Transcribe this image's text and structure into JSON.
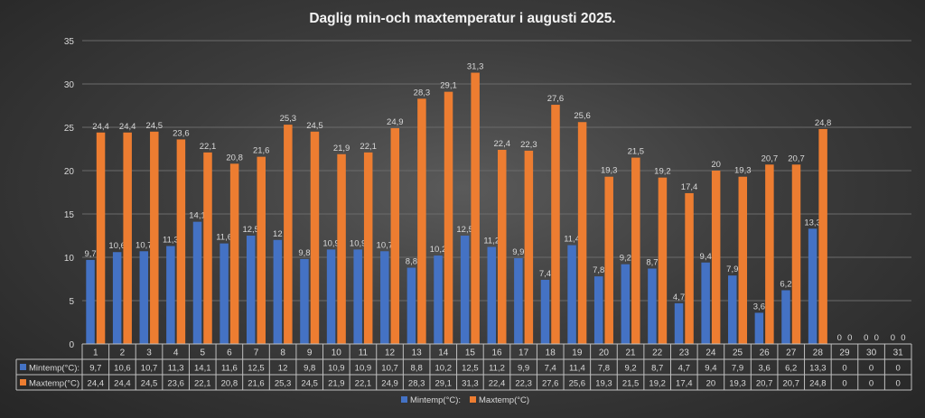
{
  "chart_data": {
    "type": "bar",
    "title": "Daglig min-och maxtemperatur i augusti 2025.",
    "categories": [
      "1",
      "2",
      "3",
      "4",
      "5",
      "6",
      "7",
      "8",
      "9",
      "10",
      "11",
      "12",
      "13",
      "14",
      "15",
      "16",
      "17",
      "18",
      "19",
      "20",
      "21",
      "22",
      "23",
      "24",
      "25",
      "26",
      "27",
      "28",
      "29",
      "30",
      "31"
    ],
    "series": [
      {
        "name": "Mintemp(°C):",
        "color": "#4472c4",
        "values": [
          9.7,
          10.6,
          10.7,
          11.3,
          14.1,
          11.6,
          12.5,
          12,
          9.8,
          10.9,
          10.9,
          10.7,
          8.8,
          10.2,
          12.5,
          11.2,
          9.9,
          7.4,
          11.4,
          7.8,
          9.2,
          8.7,
          4.7,
          9.4,
          7.9,
          3.6,
          6.2,
          13.3,
          0,
          0,
          0
        ],
        "labels": [
          "9,7",
          "10,6",
          "10,7",
          "11,3",
          "14,1",
          "11,6",
          "12,5",
          "12",
          "9,8",
          "10,9",
          "10,9",
          "10,7",
          "8,8",
          "10,2",
          "12,5",
          "11,2",
          "9,9",
          "7,4",
          "11,4",
          "7,8",
          "9,2",
          "8,7",
          "4,7",
          "9,4",
          "7,9",
          "3,6",
          "6,2",
          "13,3",
          "0",
          "0",
          "0"
        ]
      },
      {
        "name": "Maxtemp(°C)",
        "color": "#ed7d31",
        "values": [
          24.4,
          24.4,
          24.5,
          23.6,
          22.1,
          20.8,
          21.6,
          25.3,
          24.5,
          21.9,
          22.1,
          24.9,
          28.3,
          29.1,
          31.3,
          22.4,
          22.3,
          27.6,
          25.6,
          19.3,
          21.5,
          19.2,
          17.4,
          20,
          19.3,
          20.7,
          20.7,
          24.8,
          0,
          0,
          0
        ],
        "labels": [
          "24,4",
          "24,4",
          "24,5",
          "23,6",
          "22,1",
          "20,8",
          "21,6",
          "25,3",
          "24,5",
          "21,9",
          "22,1",
          "24,9",
          "28,3",
          "29,1",
          "31,3",
          "22,4",
          "22,3",
          "27,6",
          "25,6",
          "19,3",
          "21,5",
          "19,2",
          "17,4",
          "20",
          "19,3",
          "20,7",
          "20,7",
          "24,8",
          "0",
          "0",
          "0"
        ]
      }
    ],
    "yticks": [
      "0",
      "5",
      "10",
      "15",
      "20",
      "25",
      "30",
      "35"
    ],
    "ylim": [
      0,
      35
    ],
    "grid": true,
    "legend": "bottom",
    "data_table": true
  }
}
